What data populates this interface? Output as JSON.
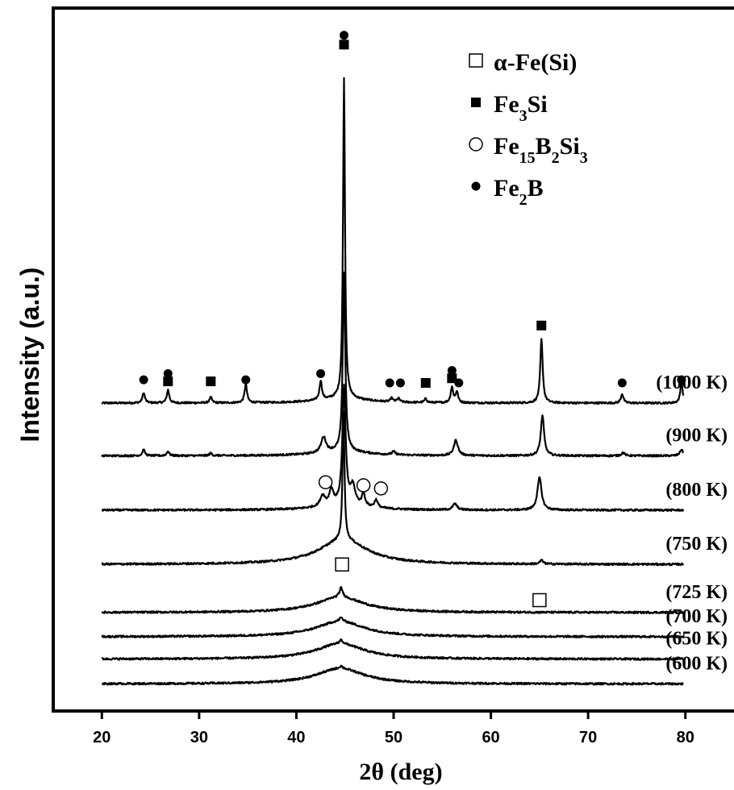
{
  "chart_data": {
    "type": "line",
    "xlabel": "2θ (deg)",
    "ylabel": "Intensity (a.u.)",
    "xlim": [
      15,
      85
    ],
    "x_ticks": [
      20,
      30,
      40,
      50,
      60,
      70,
      80
    ],
    "y_ticks": [],
    "legend": {
      "placement": "top-right",
      "entries": [
        {
          "marker": "open-square",
          "label": "α-Fe(Si)",
          "parts": [
            {
              "t": "α-Fe(Si)",
              "sub": false
            }
          ]
        },
        {
          "marker": "filled-square",
          "label": "Fe3Si",
          "parts": [
            {
              "t": "Fe",
              "sub": false
            },
            {
              "t": "3",
              "sub": true
            },
            {
              "t": "Si",
              "sub": false
            }
          ]
        },
        {
          "marker": "open-circle",
          "label": "Fe15B2Si3",
          "parts": [
            {
              "t": "Fe",
              "sub": false
            },
            {
              "t": "15",
              "sub": true
            },
            {
              "t": "B",
              "sub": false
            },
            {
              "t": "2",
              "sub": true
            },
            {
              "t": "Si",
              "sub": false
            },
            {
              "t": "3",
              "sub": true
            }
          ]
        },
        {
          "marker": "filled-circle",
          "label": "Fe2B",
          "parts": [
            {
              "t": "Fe",
              "sub": false
            },
            {
              "t": "2",
              "sub": true
            },
            {
              "t": "B",
              "sub": false
            }
          ]
        }
      ]
    },
    "series": [
      {
        "name": "(1000 K)",
        "baseline": 9.35,
        "hump_center": 44.8,
        "hump_height": 0.15,
        "hump_width": 3.0,
        "peaks": [
          [
            24.3,
            0.33,
            0.15
          ],
          [
            26.8,
            0.42,
            0.15
          ],
          [
            31.2,
            0.18,
            0.15
          ],
          [
            34.8,
            0.6,
            0.15
          ],
          [
            42.5,
            0.62,
            0.15
          ],
          [
            44.9,
            10.3,
            0.12
          ],
          [
            49.8,
            0.12,
            0.15
          ],
          [
            50.5,
            0.12,
            0.15
          ],
          [
            53.3,
            0.12,
            0.15
          ],
          [
            56.0,
            0.5,
            0.15
          ],
          [
            56.5,
            0.35,
            0.15
          ],
          [
            65.2,
            2.05,
            0.15
          ],
          [
            73.5,
            0.3,
            0.15
          ],
          [
            79.6,
            0.65,
            0.15
          ]
        ]
      },
      {
        "name": "(900 K)",
        "baseline": 7.65,
        "hump_center": 44.8,
        "hump_height": 0.15,
        "hump_width": 3.0,
        "peaks": [
          [
            24.3,
            0.2,
            0.15
          ],
          [
            26.8,
            0.15,
            0.15
          ],
          [
            31.2,
            0.08,
            0.15
          ],
          [
            42.8,
            0.5,
            0.3
          ],
          [
            44.9,
            5.75,
            0.15
          ],
          [
            50.0,
            0.1,
            0.2
          ],
          [
            56.4,
            0.5,
            0.25
          ],
          [
            65.3,
            1.3,
            0.2
          ],
          [
            73.6,
            0.1,
            0.2
          ],
          [
            79.6,
            0.2,
            0.2
          ]
        ]
      },
      {
        "name": "(800 K)",
        "baseline": 5.9,
        "hump_center": 44.8,
        "hump_height": 0.15,
        "hump_width": 3.0,
        "peaks": [
          [
            42.7,
            0.35,
            0.3
          ],
          [
            43.6,
            0.5,
            0.25
          ],
          [
            44.9,
            3.8,
            0.2
          ],
          [
            45.8,
            0.6,
            0.3
          ],
          [
            46.9,
            0.4,
            0.2
          ],
          [
            48.2,
            0.25,
            0.2
          ],
          [
            56.3,
            0.2,
            0.25
          ],
          [
            65.0,
            1.05,
            0.25
          ]
        ]
      },
      {
        "name": "(750 K)",
        "baseline": 4.15,
        "hump_center": 44.8,
        "hump_height": 0.8,
        "hump_width": 3.0,
        "peaks": [
          [
            44.85,
            4.1,
            0.12
          ],
          [
            65.2,
            0.12,
            0.2
          ]
        ]
      },
      {
        "name": "(725 K)",
        "baseline": 2.6,
        "hump_center": 44.5,
        "hump_height": 0.5,
        "hump_width": 3.0,
        "peaks": [
          [
            44.6,
            0.3,
            0.2
          ]
        ]
      },
      {
        "name": "(700 K)",
        "baseline": 1.82,
        "hump_center": 44.5,
        "hump_height": 0.5,
        "hump_width": 3.0,
        "peaks": [
          [
            44.6,
            0.12,
            0.2
          ]
        ]
      },
      {
        "name": "(650 K)",
        "baseline": 1.1,
        "hump_center": 44.5,
        "hump_height": 0.5,
        "hump_width": 3.0,
        "peaks": [
          [
            44.6,
            0.12,
            0.2
          ]
        ]
      },
      {
        "name": "(600 K)",
        "baseline": 0.3,
        "hump_center": 44.5,
        "hump_height": 0.5,
        "hump_width": 3.0,
        "peaks": [
          [
            44.6,
            0.08,
            0.2
          ]
        ]
      }
    ],
    "annotations": [
      {
        "marker": "filled-circle",
        "x": 24.3,
        "y": 10.1
      },
      {
        "marker": "filled-circle",
        "x": 26.8,
        "y": 10.3
      },
      {
        "marker": "filled-square",
        "x": 26.8,
        "y": 10.05
      },
      {
        "marker": "filled-square",
        "x": 31.2,
        "y": 10.05
      },
      {
        "marker": "filled-circle",
        "x": 34.8,
        "y": 10.1
      },
      {
        "marker": "filled-circle",
        "x": 42.5,
        "y": 10.3
      },
      {
        "marker": "filled-circle",
        "x": 44.9,
        "y": 21.2
      },
      {
        "marker": "filled-square",
        "x": 44.9,
        "y": 20.9
      },
      {
        "marker": "filled-circle",
        "x": 49.6,
        "y": 10.0
      },
      {
        "marker": "filled-circle",
        "x": 50.7,
        "y": 10.0
      },
      {
        "marker": "filled-square",
        "x": 53.3,
        "y": 10.0
      },
      {
        "marker": "filled-circle",
        "x": 56.0,
        "y": 10.4
      },
      {
        "marker": "filled-square",
        "x": 56.0,
        "y": 10.15
      },
      {
        "marker": "filled-circle",
        "x": 56.7,
        "y": 10.0
      },
      {
        "marker": "filled-square",
        "x": 65.2,
        "y": 11.85
      },
      {
        "marker": "filled-circle",
        "x": 73.5,
        "y": 10.0
      },
      {
        "marker": "filled-circle",
        "x": 79.6,
        "y": 10.1
      },
      {
        "marker": "open-circle",
        "x": 43.0,
        "y": 6.8
      },
      {
        "marker": "open-circle",
        "x": 46.9,
        "y": 6.7
      },
      {
        "marker": "open-circle",
        "x": 48.7,
        "y": 6.6
      },
      {
        "marker": "open-square",
        "x": 44.7,
        "y": 4.15
      },
      {
        "marker": "open-square",
        "x": 65.0,
        "y": 3.0
      }
    ]
  }
}
